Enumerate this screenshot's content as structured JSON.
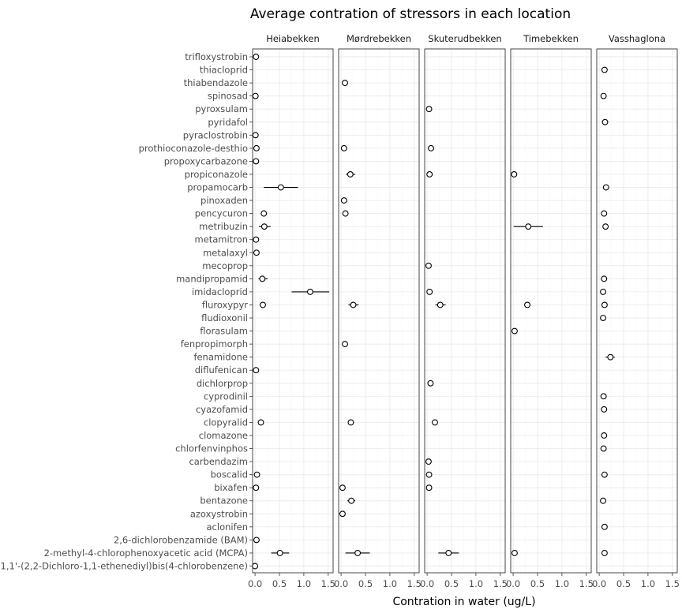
{
  "chart_data": {
    "type": "scatter",
    "title": "Average contration of stressors in each location",
    "xlabel": "Contration in water (ug/L)",
    "ylabel": "",
    "xlim": [
      -0.05,
      1.6
    ],
    "xticks": [
      0.0,
      0.5,
      1.0,
      1.5
    ],
    "xtick_labels": [
      "0.0",
      "0.5",
      "1.0",
      "1.5"
    ],
    "grid": true,
    "facets": [
      "Heiabekken",
      "Mørdrebekken",
      "Skuterudbekken",
      "Timebekken",
      "Vasshaglona"
    ],
    "categories": [
      "trifloxystrobin",
      "thiacloprid",
      "thiabendazole",
      "spinosad",
      "pyroxsulam",
      "pyridafol",
      "pyraclostrobin",
      "prothioconazole-desthio",
      "propoxycarbazone",
      "propiconazole",
      "propamocarb",
      "pinoxaden",
      "pencycuron",
      "metribuzin",
      "metamitron",
      "metalaxyl",
      "mecoprop",
      "mandipropamid",
      "imidacloprid",
      "fluroxypyr",
      "fludioxonil",
      "florasulam",
      "fenpropimorph",
      "fenamidone",
      "diflufenican",
      "dichlorprop",
      "cyprodinil",
      "cyazofamid",
      "clopyralid",
      "clomazone",
      "chlorfenvinphos",
      "carbendazim",
      "boscalid",
      "bixafen",
      "bentazone",
      "azoxystrobin",
      "aclonifen",
      "2,6-dichlorobenzamide (BAM)",
      "2-methyl-4-chlorophenoxyacetic acid (MCPA)",
      "1,1'-(2,2-Dichloro-1,1-ethenediyl)bis(4-chlorobenzene)"
    ],
    "series": [
      {
        "facet": "Heiabekken",
        "points": [
          {
            "y": "trifloxystrobin",
            "x": 0.02
          },
          {
            "y": "spinosad",
            "x": 0.01
          },
          {
            "y": "pyraclostrobin",
            "x": 0.01
          },
          {
            "y": "prothioconazole-desthio",
            "x": 0.03
          },
          {
            "y": "propoxycarbazone",
            "x": 0.02
          },
          {
            "y": "propamocarb",
            "x": 0.53,
            "xmin": 0.18,
            "xmax": 0.88
          },
          {
            "y": "pencycuron",
            "x": 0.18,
            "xmin": 0.14,
            "xmax": 0.22
          },
          {
            "y": "metribuzin",
            "x": 0.19,
            "xmin": 0.08,
            "xmax": 0.32
          },
          {
            "y": "metamitron",
            "x": 0.02
          },
          {
            "y": "metalaxyl",
            "x": 0.03
          },
          {
            "y": "mandipropamid",
            "x": 0.15,
            "xmin": 0.07,
            "xmax": 0.26
          },
          {
            "y": "imidacloprid",
            "x": 1.13,
            "xmin": 0.75,
            "xmax": 1.52
          },
          {
            "y": "fluroxypyr",
            "x": 0.16
          },
          {
            "y": "diflufenican",
            "x": 0.02
          },
          {
            "y": "clopyralid",
            "x": 0.12
          },
          {
            "y": "boscalid",
            "x": 0.04
          },
          {
            "y": "bixafen",
            "x": 0.02
          },
          {
            "y": "2,6-dichlorobenzamide (BAM)",
            "x": 0.03
          },
          {
            "y": "2-methyl-4-chlorophenoxyacetic acid (MCPA)",
            "x": 0.51,
            "xmin": 0.33,
            "xmax": 0.7
          },
          {
            "y": "1,1'-(2,2-Dichloro-1,1-ethenediyl)bis(4-chlorobenzene)",
            "x": 0.0
          }
        ]
      },
      {
        "facet": "Mørdrebekken",
        "points": [
          {
            "y": "thiabendazole",
            "x": 0.08
          },
          {
            "y": "prothioconazole-desthio",
            "x": 0.06
          },
          {
            "y": "propiconazole",
            "x": 0.19,
            "xmin": 0.1,
            "xmax": 0.29
          },
          {
            "y": "pinoxaden",
            "x": 0.06
          },
          {
            "y": "pencycuron",
            "x": 0.09
          },
          {
            "y": "fluroxypyr",
            "x": 0.25,
            "xmin": 0.15,
            "xmax": 0.36
          },
          {
            "y": "fenpropimorph",
            "x": 0.08
          },
          {
            "y": "clopyralid",
            "x": 0.2
          },
          {
            "y": "bixafen",
            "x": 0.03
          },
          {
            "y": "bentazone",
            "x": 0.21,
            "xmin": 0.13,
            "xmax": 0.29
          },
          {
            "y": "azoxystrobin",
            "x": 0.03
          },
          {
            "y": "2-methyl-4-chlorophenoxyacetic acid (MCPA)",
            "x": 0.34,
            "xmin": 0.09,
            "xmax": 0.59
          }
        ]
      },
      {
        "facet": "Skuterudbekken",
        "points": [
          {
            "y": "pyroxsulam",
            "x": 0.04
          },
          {
            "y": "prothioconazole-desthio",
            "x": 0.08
          },
          {
            "y": "propiconazole",
            "x": 0.05
          },
          {
            "y": "mecoprop",
            "x": 0.03
          },
          {
            "y": "imidacloprid",
            "x": 0.05
          },
          {
            "y": "fluroxypyr",
            "x": 0.27,
            "xmin": 0.17,
            "xmax": 0.38
          },
          {
            "y": "dichlorprop",
            "x": 0.07
          },
          {
            "y": "clopyralid",
            "x": 0.16
          },
          {
            "y": "carbendazim",
            "x": 0.03
          },
          {
            "y": "boscalid",
            "x": 0.04
          },
          {
            "y": "bixafen",
            "x": 0.04
          },
          {
            "y": "2-methyl-4-chlorophenoxyacetic acid (MCPA)",
            "x": 0.44,
            "xmin": 0.23,
            "xmax": 0.65
          }
        ]
      },
      {
        "facet": "Timebekken",
        "points": [
          {
            "y": "propiconazole",
            "x": 0.02
          },
          {
            "y": "metribuzin",
            "x": 0.31,
            "xmin": 0.01,
            "xmax": 0.61
          },
          {
            "y": "fluroxypyr",
            "x": 0.29,
            "xmin": 0.26,
            "xmax": 0.32
          },
          {
            "y": "florasulam",
            "x": 0.03
          },
          {
            "y": "2-methyl-4-chlorophenoxyacetic acid (MCPA)",
            "x": 0.03
          }
        ]
      },
      {
        "facet": "Vasshaglona",
        "points": [
          {
            "y": "thiacloprid",
            "x": 0.11
          },
          {
            "y": "spinosad",
            "x": 0.09
          },
          {
            "y": "pyridafol",
            "x": 0.12
          },
          {
            "y": "propamocarb",
            "x": 0.14
          },
          {
            "y": "pencycuron",
            "x": 0.1
          },
          {
            "y": "metribuzin",
            "x": 0.13
          },
          {
            "y": "mandipropamid",
            "x": 0.1
          },
          {
            "y": "imidacloprid",
            "x": 0.08
          },
          {
            "y": "fluroxypyr",
            "x": 0.11
          },
          {
            "y": "fludioxonil",
            "x": 0.08
          },
          {
            "y": "fenamidone",
            "x": 0.23,
            "xmin": 0.13,
            "xmax": 0.32
          },
          {
            "y": "cyprodinil",
            "x": 0.09
          },
          {
            "y": "cyazofamid",
            "x": 0.1
          },
          {
            "y": "clomazone",
            "x": 0.1
          },
          {
            "y": "chlorfenvinphos",
            "x": 0.09
          },
          {
            "y": "boscalid",
            "x": 0.11
          },
          {
            "y": "bentazone",
            "x": 0.08
          },
          {
            "y": "aclonifen",
            "x": 0.11
          },
          {
            "y": "2-methyl-4-chlorophenoxyacetic acid (MCPA)",
            "x": 0.11
          }
        ]
      }
    ]
  }
}
